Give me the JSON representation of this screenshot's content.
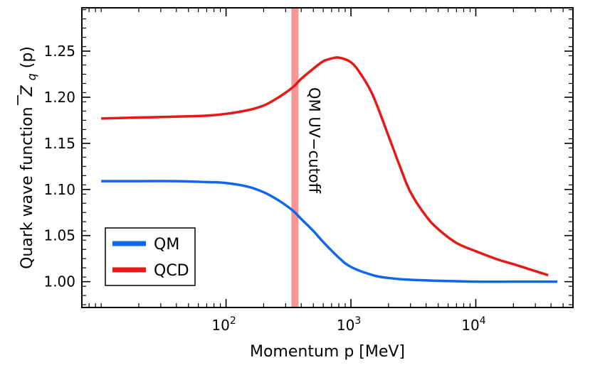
{
  "chart_data": {
    "type": "line",
    "xlabel": "Momentum p [MeV]",
    "ylabel": "Quark wave function",
    "ylabel_symbol": "Z",
    "ylabel_subscript": "q",
    "ylabel_arg": "(p)",
    "xscale": "log",
    "xlim": [
      7,
      60000
    ],
    "ylim": [
      0.972,
      1.297
    ],
    "x_ticks": [
      {
        "value": 100,
        "base": "10",
        "exp": "2"
      },
      {
        "value": 1000,
        "base": "10",
        "exp": "3"
      },
      {
        "value": 10000,
        "base": "10",
        "exp": "4"
      }
    ],
    "y_ticks": [
      {
        "value": 1.0,
        "label": "1.00"
      },
      {
        "value": 1.05,
        "label": "1.05"
      },
      {
        "value": 1.1,
        "label": "1.10"
      },
      {
        "value": 1.15,
        "label": "1.15"
      },
      {
        "value": 1.2,
        "label": "1.20"
      },
      {
        "value": 1.25,
        "label": "1.25"
      }
    ],
    "grid": false,
    "legend_position": "lower-left",
    "series": [
      {
        "name": "QM",
        "color": "#1166ee",
        "x": [
          10,
          20,
          40,
          70,
          100,
          150,
          200,
          250,
          300,
          350,
          400,
          500,
          600,
          800,
          1000,
          1500,
          2000,
          3000,
          5000,
          10000,
          20000,
          45000
        ],
        "y": [
          1.109,
          1.109,
          1.109,
          1.108,
          1.107,
          1.103,
          1.097,
          1.09,
          1.083,
          1.076,
          1.068,
          1.055,
          1.043,
          1.026,
          1.016,
          1.007,
          1.004,
          1.002,
          1.001,
          1.0,
          1.0,
          1.0
        ]
      },
      {
        "name": "QCD",
        "color": "#e61919",
        "x": [
          10,
          20,
          40,
          70,
          100,
          150,
          200,
          250,
          300,
          350,
          400,
          500,
          600,
          700,
          800,
          1000,
          1200,
          1500,
          2000,
          2500,
          3000,
          4000,
          5000,
          7000,
          10000,
          15000,
          20000,
          38000
        ],
        "y": [
          1.177,
          1.178,
          1.179,
          1.18,
          1.182,
          1.186,
          1.191,
          1.198,
          1.205,
          1.212,
          1.22,
          1.231,
          1.239,
          1.242,
          1.243,
          1.238,
          1.225,
          1.202,
          1.158,
          1.123,
          1.097,
          1.071,
          1.057,
          1.042,
          1.033,
          1.024,
          1.019,
          1.007
        ]
      }
    ],
    "cutoff": {
      "x": 356,
      "label": "QM UV−cutoff",
      "color": "#f79494"
    }
  }
}
